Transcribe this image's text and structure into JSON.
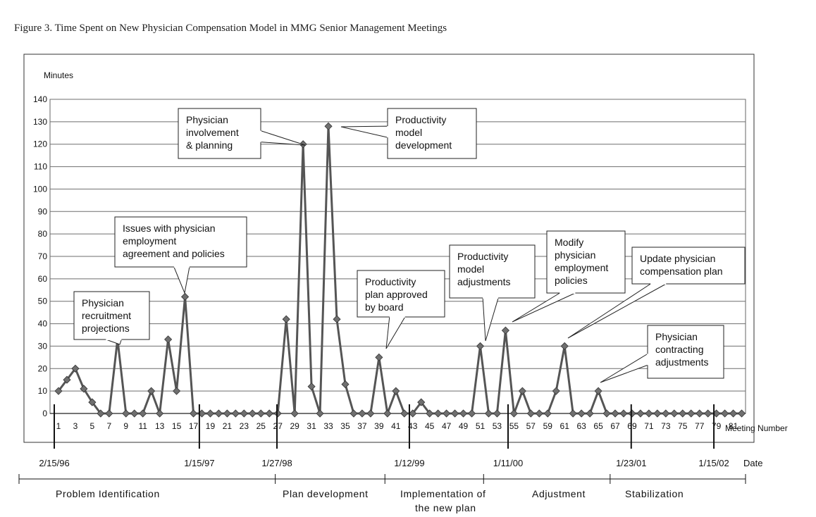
{
  "figure_caption": "Figure 3. Time Spent on New Physician Compensation Model in MMG Senior Management Meetings",
  "chart_data": {
    "type": "line",
    "ylabel": "Minutes",
    "xlabel": "Meeting Number",
    "date_axis_label": "Date",
    "ylim": [
      0,
      140
    ],
    "y_ticks": [
      0,
      10,
      20,
      30,
      40,
      50,
      60,
      70,
      80,
      90,
      100,
      110,
      120,
      130,
      140
    ],
    "xlim": [
      1,
      82
    ],
    "x_tick_labels": [
      "1",
      "3",
      "5",
      "7",
      "9",
      "11",
      "13",
      "15",
      "17",
      "19",
      "21",
      "23",
      "25",
      "27",
      "29",
      "31",
      "33",
      "35",
      "37",
      "39",
      "41",
      "43",
      "45",
      "47",
      "49",
      "51",
      "53",
      "55",
      "57",
      "59",
      "61",
      "63",
      "65",
      "67",
      "69",
      "71",
      "73",
      "75",
      "77",
      "79",
      "81"
    ],
    "grid": true,
    "series": [
      {
        "values": [
          10,
          15,
          20,
          11,
          5,
          0,
          0,
          33,
          0,
          0,
          0,
          10,
          0,
          33,
          10,
          52,
          0,
          0,
          0,
          0,
          0,
          0,
          0,
          0,
          0,
          0,
          0,
          42,
          0,
          120,
          12,
          0,
          128,
          42,
          13,
          0,
          0,
          0,
          25,
          0,
          10,
          0,
          0,
          5,
          0,
          0,
          0,
          0,
          0,
          0,
          30,
          0,
          0,
          37,
          0,
          10,
          0,
          0,
          0,
          10,
          30,
          0,
          0,
          0,
          10,
          0,
          0,
          0,
          0,
          0,
          0,
          0,
          0,
          0,
          0,
          0,
          0,
          0,
          0,
          0,
          0,
          0
        ]
      }
    ],
    "annotations": [
      {
        "lines": [
          "Physician",
          "recruitment",
          "projections"
        ],
        "meeting": 8,
        "minutes": 33
      },
      {
        "lines": [
          "Issues with physician",
          "employment",
          "agreement and policies"
        ],
        "meeting": 16,
        "minutes": 52
      },
      {
        "lines": [
          "Physician",
          "involvement",
          "& planning"
        ],
        "meeting": 30,
        "minutes": 120
      },
      {
        "lines": [
          "Productivity",
          "model",
          "development"
        ],
        "meeting": 33,
        "minutes": 128
      },
      {
        "lines": [
          "Productivity",
          "plan approved",
          "by board"
        ],
        "meeting": 39,
        "minutes": 25
      },
      {
        "lines": [
          "Productivity",
          "model",
          "adjustments"
        ],
        "meeting": 51,
        "minutes": 30
      },
      {
        "lines": [
          "Modify",
          "physician",
          "employment",
          "policies"
        ],
        "meeting": 54,
        "minutes": 37
      },
      {
        "lines": [
          "Update physician",
          "compensation plan"
        ],
        "meeting": 61,
        "minutes": 30
      },
      {
        "lines": [
          "Physician",
          "contracting",
          "adjustments"
        ],
        "meeting": 65,
        "minutes": 10
      }
    ],
    "date_markers": [
      {
        "label": "2/15/96",
        "meeting": 0.5
      },
      {
        "label": "1/15/97",
        "meeting": 17.7
      },
      {
        "label": "1/27/98",
        "meeting": 26.9
      },
      {
        "label": "1/12/99",
        "meeting": 42.6
      },
      {
        "label": "1/11/00",
        "meeting": 54.3
      },
      {
        "label": "1/23/01",
        "meeting": 68.9
      },
      {
        "label": "1/15/02",
        "meeting": 78.7
      }
    ],
    "phases": [
      {
        "lines": [
          "Problem Identification"
        ],
        "start_meeting": -4,
        "end_meeting": 26.7
      },
      {
        "lines": [
          "Plan development"
        ],
        "start_meeting": 26.7,
        "end_meeting": 39.7
      },
      {
        "lines": [
          "Implementation of",
          "the new plan"
        ],
        "start_meeting": 39.7,
        "end_meeting": 51.4
      },
      {
        "lines": [
          "Adjustment"
        ],
        "start_meeting": 51.4,
        "end_meeting": 66.4
      },
      {
        "lines": [
          "Stabilization"
        ],
        "start_meeting": 66.4,
        "end_meeting": 82.5
      }
    ]
  }
}
